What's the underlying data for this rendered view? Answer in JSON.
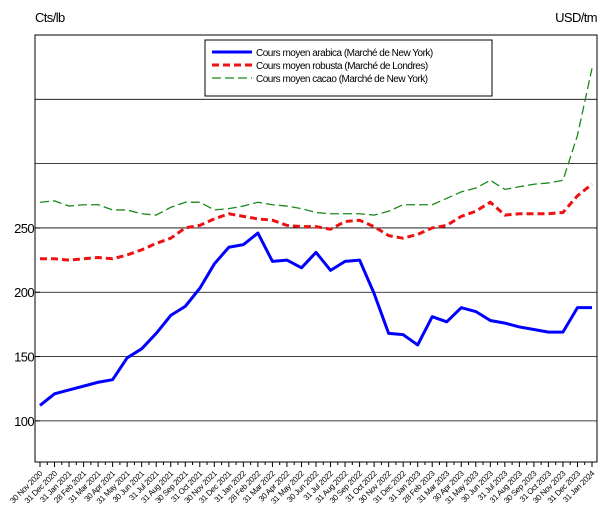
{
  "chart_data": {
    "type": "line",
    "y_label": "Cts/lb",
    "y2_label": "USD/tm",
    "categories": [
      "30 Nov 2020",
      "31 Dec 2020",
      "31 Jan 2021",
      "28 Feb 2021",
      "31 Mar 2021",
      "30 Apr 2021",
      "31 May 2021",
      "30 Jun 2021",
      "31 Jul 2021",
      "31 Aug 2021",
      "30 Sep 2021",
      "31 Oct 2021",
      "30 Nov 2021",
      "31 Dec 2021",
      "31 Jan 2022",
      "28 Feb 2022",
      "31 Mar 2022",
      "30 Apr 2022",
      "31 May 2022",
      "30 Jun 2022",
      "31 Jul 2022",
      "31 Aug 2022",
      "30 Sep 2022",
      "31 Oct 2022",
      "30 Nov 2022",
      "31 Dec 2022",
      "31 Jan 2023",
      "28 Feb 2023",
      "31 Mar 2023",
      "30 Apr 2023",
      "31 May 2023",
      "30 Jun 2023",
      "31 Jul 2023",
      "31 Aug 2023",
      "30 Sep 2023",
      "31 Oct 2023",
      "30 Nov 2023",
      "31 Dec 2023",
      "31 Jan 2024"
    ],
    "series": [
      {
        "name": "Cours moyen arabica (Marché de New York)",
        "color": "#0000ff",
        "width": 3,
        "dash": "none",
        "values": [
          112,
          121,
          124,
          127,
          130,
          132,
          149,
          156,
          168,
          182,
          189,
          203,
          222,
          235,
          237,
          246,
          224,
          225,
          219,
          231,
          217,
          224,
          225,
          199,
          168,
          167,
          159,
          181,
          177,
          188,
          185,
          178,
          176,
          173,
          171,
          169,
          169,
          188,
          188
        ]
      },
      {
        "name": "Cours moyen robusta (Marché de Londres)",
        "color": "#ee1111",
        "width": 3,
        "dash": "7,4",
        "axis": "y2",
        "values": [
          1400,
          1400,
          1373,
          1400,
          1427,
          1400,
          1480,
          1587,
          1721,
          1829,
          2043,
          2096,
          2231,
          2338,
          2284,
          2231,
          2204,
          2096,
          2070,
          2070,
          2016,
          2177,
          2204,
          2070,
          1882,
          1829,
          1909,
          2043,
          2096,
          2284,
          2391,
          2579,
          2311,
          2338,
          2338,
          2338,
          2365,
          2713,
          2954
        ]
      },
      {
        "name": "Cours moyen cacao (Marché de New York)",
        "color": "#1a8a1a",
        "width": 1.3,
        "dash": "9,4",
        "axis": "y2",
        "values": [
          2579,
          2606,
          2499,
          2526,
          2526,
          2418,
          2418,
          2338,
          2311,
          2472,
          2579,
          2579,
          2418,
          2445,
          2499,
          2579,
          2526,
          2499,
          2445,
          2365,
          2338,
          2338,
          2338,
          2311,
          2391,
          2526,
          2526,
          2526,
          2660,
          2794,
          2874,
          3035,
          2847,
          2901,
          2954,
          2981,
          3035,
          3973,
          5367
        ]
      }
    ],
    "ylim": [
      68,
      400
    ],
    "yticks": [
      100,
      150,
      200,
      250
    ],
    "grid_values": [
      100,
      150,
      200,
      250,
      300,
      350
    ],
    "y2lim": [
      -2834,
      6063
    ],
    "grid": true
  }
}
